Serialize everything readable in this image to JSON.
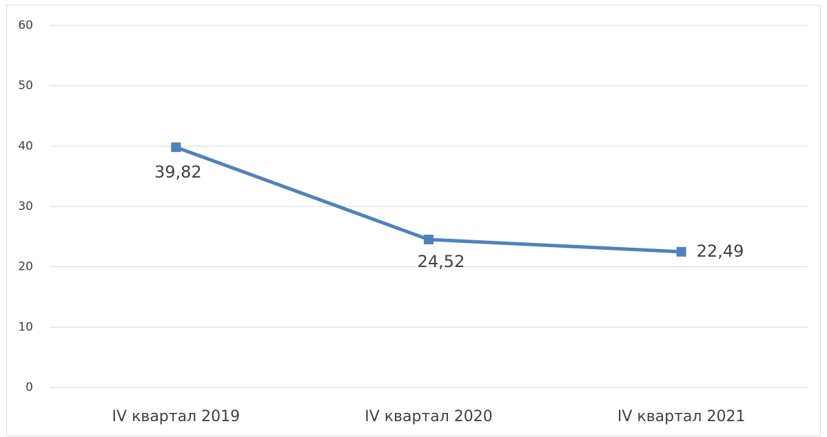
{
  "chart_data": {
    "type": "line",
    "categories": [
      "IV квартал 2019",
      "IV квартал 2020",
      "IV квартал 2021"
    ],
    "series": [
      {
        "name": "",
        "color": "#4f81bd",
        "values": [
          39.82,
          24.52,
          22.49
        ],
        "value_labels": [
          "39,82",
          "24,52",
          "22,49"
        ]
      }
    ],
    "ylim": [
      0,
      60
    ],
    "yticks": [
      0,
      10,
      20,
      30,
      40,
      50,
      60
    ],
    "grid": true
  }
}
